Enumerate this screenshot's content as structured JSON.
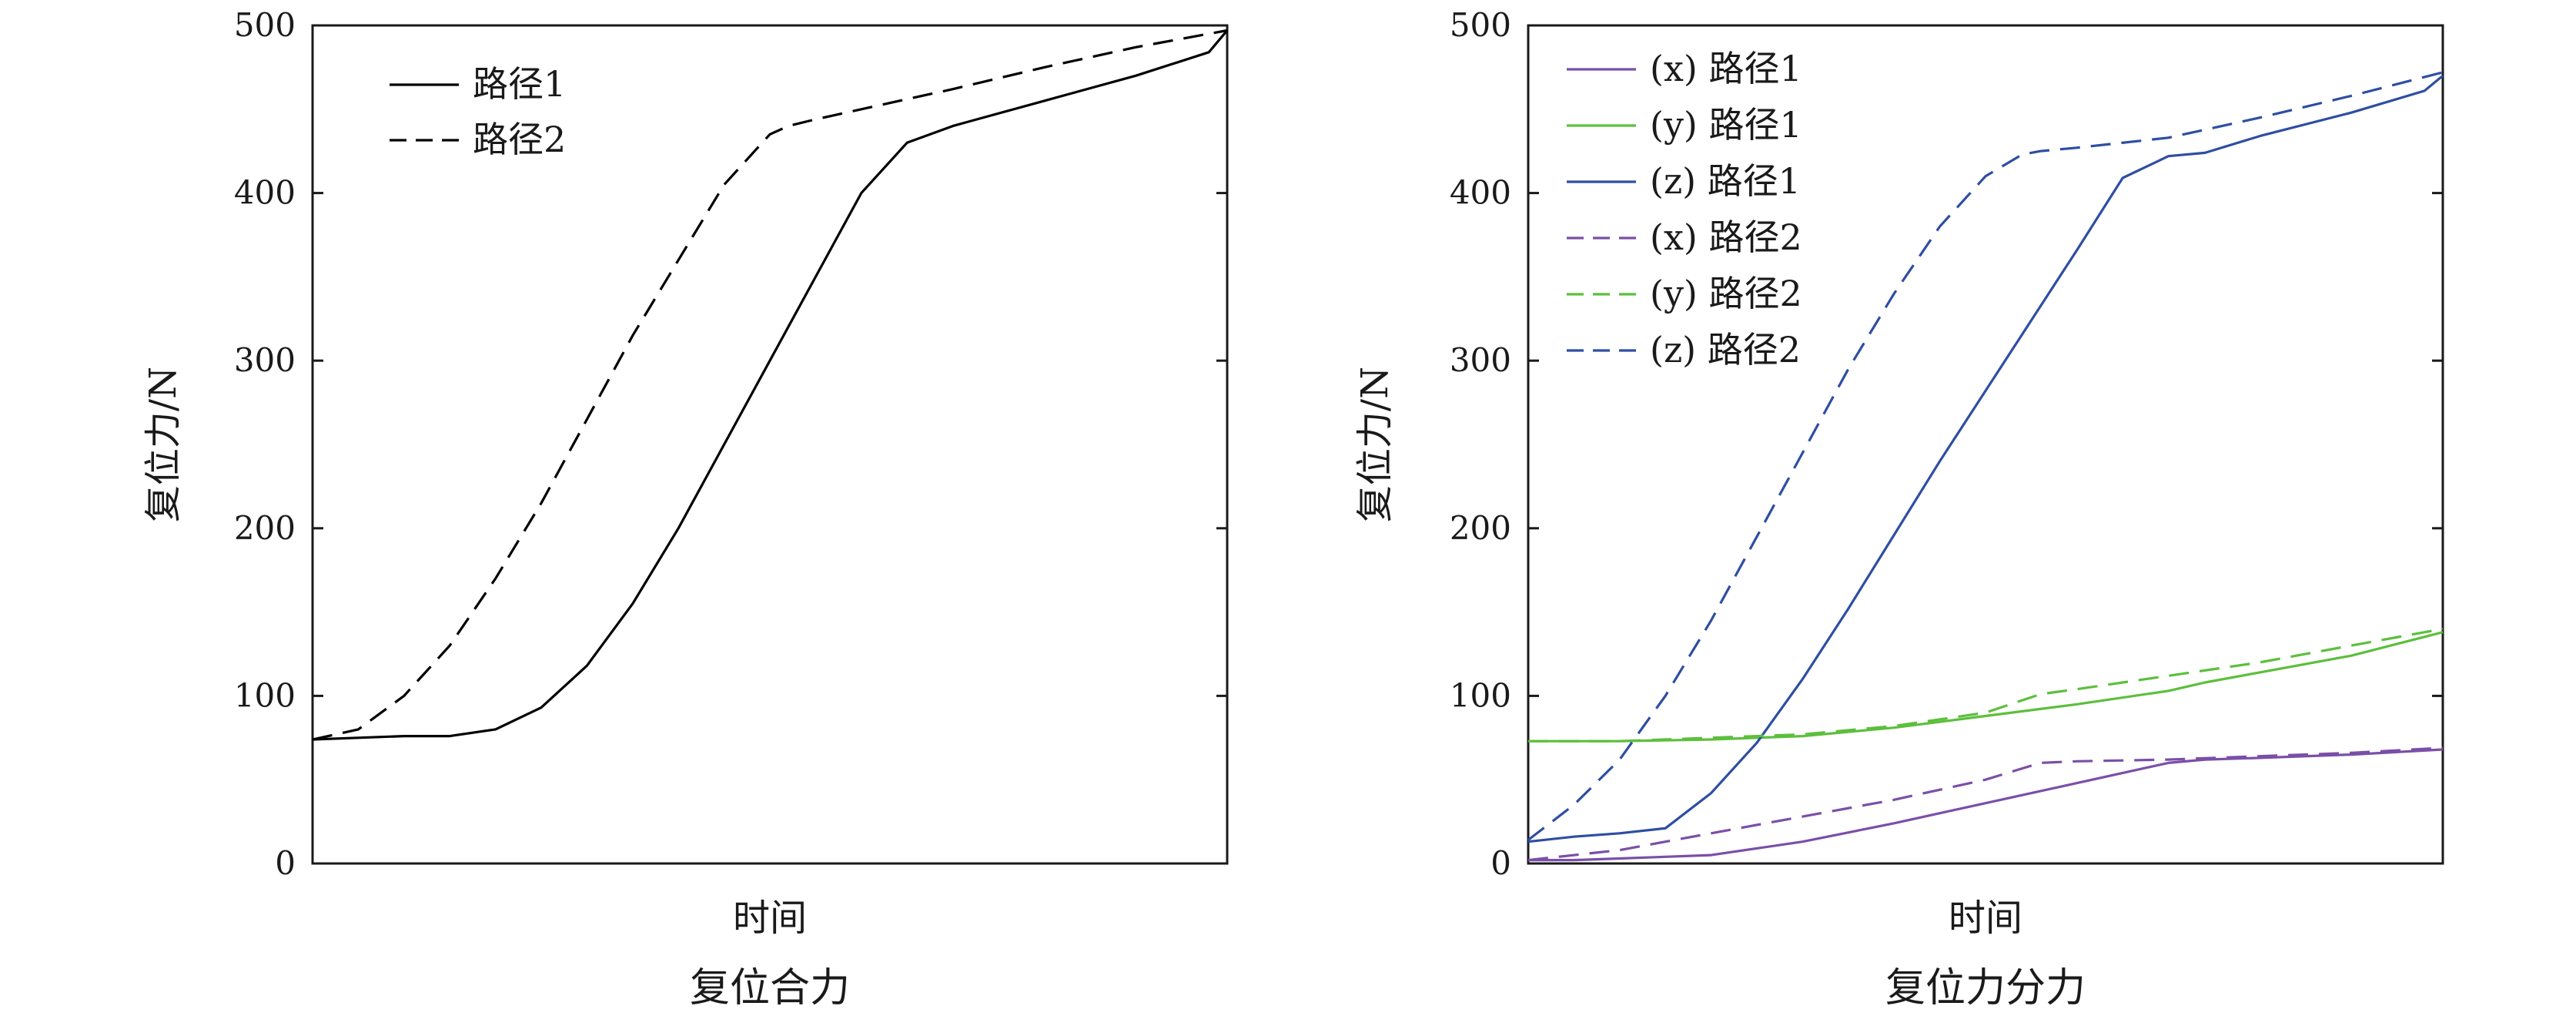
{
  "charts": [
    {
      "caption": "复位合力",
      "xlabel": "时间",
      "ylabel": "复位力/N",
      "yticks": [
        "0",
        "100",
        "200",
        "300",
        "400",
        "500"
      ]
    },
    {
      "caption": "复位力分力",
      "xlabel": "时间",
      "ylabel": "复位力/N",
      "yticks": [
        "0",
        "100",
        "200",
        "300",
        "400",
        "500"
      ]
    }
  ],
  "chart_data": [
    {
      "type": "line",
      "title": "复位合力",
      "xlabel": "时间",
      "ylabel": "复位力/N",
      "ylim": [
        0,
        500
      ],
      "x_ticks_shown": false,
      "legend_position": "top-left",
      "series": [
        {
          "name": "路径1",
          "style": "solid",
          "color": "#000000",
          "x": [
            0,
            0.05,
            0.1,
            0.15,
            0.2,
            0.25,
            0.3,
            0.35,
            0.4,
            0.45,
            0.5,
            0.55,
            0.6,
            0.65,
            0.7,
            0.72,
            0.8,
            0.9,
            0.98,
            1.0
          ],
          "values": [
            74,
            75,
            76,
            76,
            80,
            93,
            118,
            155,
            200,
            250,
            300,
            350,
            400,
            430,
            440,
            443,
            455,
            470,
            484,
            497
          ]
        },
        {
          "name": "路径2",
          "style": "dashed",
          "color": "#000000",
          "x": [
            0,
            0.05,
            0.1,
            0.15,
            0.2,
            0.25,
            0.3,
            0.35,
            0.4,
            0.45,
            0.5,
            0.52,
            0.55,
            0.6,
            0.65,
            0.7,
            0.8,
            0.9,
            1.0
          ],
          "values": [
            74,
            80,
            100,
            130,
            170,
            215,
            265,
            315,
            360,
            405,
            435,
            440,
            444,
            450,
            456,
            462,
            475,
            487,
            497
          ]
        }
      ]
    },
    {
      "type": "line",
      "title": "复位力分力",
      "xlabel": "时间",
      "ylabel": "复位力/N",
      "ylim": [
        0,
        500
      ],
      "x_ticks_shown": false,
      "legend_position": "top-left",
      "series": [
        {
          "name": "(x) 路径1",
          "style": "solid",
          "color": "#7a4fa8",
          "x": [
            0,
            0.05,
            0.1,
            0.15,
            0.2,
            0.3,
            0.4,
            0.5,
            0.6,
            0.7,
            0.74,
            0.8,
            0.9,
            1.0
          ],
          "values": [
            2,
            2,
            3,
            4,
            5,
            13,
            24,
            36,
            48,
            60,
            62,
            63,
            65,
            68
          ]
        },
        {
          "name": "(y) 路径1",
          "style": "solid",
          "color": "#5cbf3c",
          "x": [
            0,
            0.1,
            0.2,
            0.3,
            0.4,
            0.5,
            0.6,
            0.7,
            0.74,
            0.8,
            0.9,
            1.0
          ],
          "values": [
            73,
            73,
            74,
            76,
            81,
            88,
            95,
            103,
            108,
            114,
            124,
            138
          ]
        },
        {
          "name": "(z) 路径1",
          "style": "solid",
          "color": "#2e4ea2",
          "x": [
            0,
            0.05,
            0.1,
            0.15,
            0.2,
            0.25,
            0.3,
            0.35,
            0.4,
            0.45,
            0.5,
            0.55,
            0.6,
            0.65,
            0.7,
            0.74,
            0.8,
            0.9,
            0.98,
            1.0
          ],
          "values": [
            13,
            16,
            18,
            21,
            42,
            72,
            110,
            152,
            196,
            240,
            282,
            324,
            366,
            409,
            422,
            424,
            434,
            448,
            461,
            470
          ]
        },
        {
          "name": "(x) 路径2",
          "style": "dashed",
          "color": "#7a4fa8",
          "x": [
            0,
            0.1,
            0.2,
            0.3,
            0.4,
            0.5,
            0.56,
            0.6,
            0.7,
            0.8,
            0.9,
            1.0
          ],
          "values": [
            2,
            8,
            18,
            28,
            38,
            50,
            60,
            61,
            62,
            64,
            66,
            69
          ]
        },
        {
          "name": "(y) 路径2",
          "style": "dashed",
          "color": "#5cbf3c",
          "x": [
            0,
            0.1,
            0.2,
            0.3,
            0.4,
            0.5,
            0.56,
            0.6,
            0.7,
            0.8,
            0.9,
            1.0
          ],
          "values": [
            73,
            73,
            75,
            77,
            82,
            90,
            101,
            104,
            112,
            120,
            130,
            140
          ]
        },
        {
          "name": "(z) 路径2",
          "style": "dashed",
          "color": "#2e4ea2",
          "x": [
            0,
            0.05,
            0.1,
            0.15,
            0.2,
            0.25,
            0.3,
            0.35,
            0.4,
            0.45,
            0.5,
            0.54,
            0.56,
            0.6,
            0.7,
            0.8,
            0.9,
            1.0
          ],
          "values": [
            14,
            35,
            62,
            100,
            145,
            195,
            245,
            295,
            340,
            380,
            410,
            423,
            425,
            427,
            433,
            445,
            458,
            472
          ]
        }
      ]
    }
  ]
}
